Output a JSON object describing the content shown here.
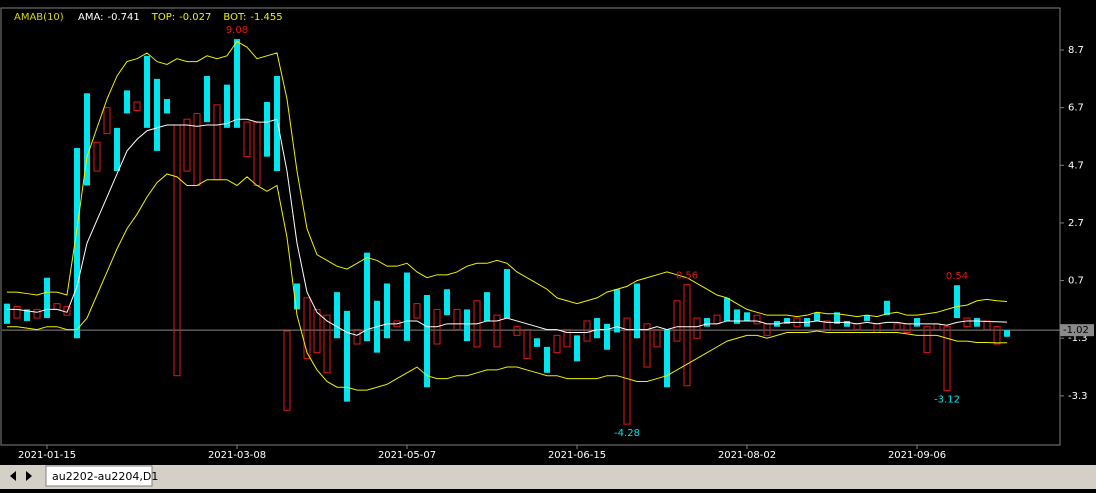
{
  "chart_data": {
    "type": "candlestick",
    "title": "AMAB(10)",
    "categories": [
      null,
      null,
      null,
      null,
      "2021-01-15",
      null,
      null,
      null,
      null,
      null,
      null,
      null,
      null,
      null,
      null,
      null,
      null,
      null,
      null,
      null,
      null,
      null,
      null,
      "2021-03-08",
      null,
      null,
      null,
      null,
      null,
      null,
      null,
      null,
      null,
      null,
      null,
      null,
      null,
      null,
      null,
      null,
      "2021-05-07",
      null,
      null,
      null,
      null,
      null,
      null,
      null,
      null,
      null,
      null,
      null,
      null,
      null,
      null,
      null,
      null,
      "2021-06-15",
      null,
      null,
      null,
      null,
      null,
      null,
      null,
      null,
      null,
      null,
      null,
      null,
      null,
      null,
      null,
      null,
      "2021-08-02",
      null,
      null,
      null,
      null,
      null,
      null,
      null,
      null,
      null,
      null,
      null,
      null,
      null,
      null,
      null,
      null,
      "2021-09-06",
      null,
      null,
      null,
      null,
      null,
      null,
      null,
      null,
      null
    ],
    "candles": {
      "up_color": "#00e5ee",
      "down_color": "#e01818",
      "open": [
        -0.8,
        -0.2,
        -0.7,
        -0.3,
        -0.6,
        -0.1,
        -0.2,
        -1.3,
        4.0,
        5.5,
        6.7,
        4.5,
        6.5,
        6.9,
        6.0,
        5.2,
        6.5,
        6.1,
        6.3,
        6.5,
        6.2,
        6.8,
        6.0,
        6.0,
        6.2,
        6.2,
        5.0,
        4.5,
        -1.05,
        -0.3,
        0.1,
        -0.3,
        -0.5,
        -1.3,
        -3.5,
        -1.0,
        -1.4,
        -1.8,
        -1.3,
        -0.7,
        -1.39,
        -0.1,
        -3.0,
        -0.3,
        -0.5,
        -0.3,
        -1.4,
        0.0,
        -0.7,
        -0.5,
        -0.6,
        -0.9,
        -1.0,
        -1.6,
        -2.5,
        -1.2,
        -1.0,
        -2.1,
        -0.7,
        -1.3,
        -1.7,
        -1.1,
        -0.6,
        -1.3,
        -0.8,
        -1.0,
        -3.0,
        0.0,
        0.56,
        -0.6,
        -0.9,
        -0.5,
        -0.7,
        -0.8,
        -0.7,
        -0.5,
        -0.8,
        -0.9,
        -0.8,
        -0.6,
        -0.9,
        -0.7,
        -0.7,
        -0.8,
        -0.9,
        -0.8,
        -0.7,
        -0.8,
        -0.5,
        -0.8,
        -0.8,
        -0.9,
        -0.9,
        -0.8,
        -0.9,
        -0.6,
        -0.6,
        -0.9,
        -0.7,
        -0.9,
        -1.25
      ],
      "close": [
        -0.1,
        -0.6,
        -0.3,
        -0.6,
        0.8,
        -0.3,
        -0.5,
        5.3,
        7.2,
        4.5,
        5.8,
        6.0,
        7.3,
        6.6,
        8.5,
        7.7,
        7.0,
        -2.6,
        4.5,
        4.0,
        7.8,
        4.2,
        7.5,
        9.08,
        5.0,
        4.0,
        6.9,
        7.8,
        -3.8,
        0.6,
        -2.0,
        -1.8,
        -2.5,
        0.3,
        -0.35,
        -1.5,
        1.67,
        0.0,
        0.6,
        -0.9,
        0.98,
        -0.6,
        0.2,
        -1.5,
        0.4,
        -1.0,
        -0.3,
        -1.6,
        0.3,
        -1.6,
        1.1,
        -1.2,
        -2.0,
        -1.3,
        -1.6,
        -1.8,
        -1.6,
        -1.2,
        -1.4,
        -0.6,
        -0.8,
        0.4,
        -4.28,
        0.6,
        -2.3,
        -1.6,
        -1.0,
        -1.4,
        -2.95,
        -1.3,
        -0.6,
        -0.8,
        0.1,
        -0.3,
        -0.4,
        -0.8,
        -1.2,
        -0.7,
        -0.6,
        -0.9,
        -0.6,
        -0.4,
        -1.0,
        -0.4,
        -0.7,
        -1.0,
        -0.5,
        -1.1,
        0.0,
        -1.0,
        -1.1,
        -0.6,
        -1.8,
        -1.0,
        -3.12,
        0.54,
        -0.9,
        -0.6,
        -1.0,
        -1.5,
        -1.02
      ]
    },
    "series": [
      {
        "name": "AMA:",
        "color": "#ffffff",
        "last": -0.741,
        "values": [
          -0.3,
          -0.3,
          -0.35,
          -0.4,
          -0.3,
          -0.3,
          -0.4,
          0.5,
          2.0,
          2.8,
          3.6,
          4.4,
          5.2,
          5.6,
          5.9,
          6.0,
          6.1,
          6.1,
          6.1,
          6.05,
          6.1,
          6.1,
          6.15,
          6.3,
          6.3,
          6.2,
          6.2,
          6.3,
          4.5,
          2.0,
          0.3,
          -0.4,
          -0.7,
          -0.9,
          -1.1,
          -1.2,
          -1.0,
          -0.9,
          -0.8,
          -0.8,
          -0.7,
          -0.7,
          -0.9,
          -0.9,
          -0.8,
          -0.8,
          -0.8,
          -0.8,
          -0.7,
          -0.7,
          -0.6,
          -0.7,
          -0.8,
          -0.9,
          -1.0,
          -1.0,
          -1.1,
          -1.1,
          -1.1,
          -1.0,
          -1.0,
          -0.9,
          -1.0,
          -1.0,
          -1.0,
          -0.9,
          -1.0,
          -0.9,
          -0.9,
          -0.9,
          -0.8,
          -0.8,
          -0.7,
          -0.7,
          -0.7,
          -0.7,
          -0.8,
          -0.8,
          -0.75,
          -0.75,
          -0.75,
          -0.7,
          -0.75,
          -0.75,
          -0.75,
          -0.8,
          -0.75,
          -0.8,
          -0.75,
          -0.75,
          -0.8,
          -0.8,
          -0.8,
          -0.8,
          -0.85,
          -0.75,
          -0.7,
          -0.7,
          -0.72,
          -0.73,
          -0.741
        ]
      },
      {
        "name": "TOP:",
        "color": "#f0f000",
        "last": -0.027,
        "values": [
          0.3,
          0.3,
          0.25,
          0.2,
          0.3,
          0.3,
          0.2,
          2.5,
          5.0,
          6.0,
          7.0,
          7.8,
          8.3,
          8.4,
          8.6,
          8.3,
          8.2,
          8.4,
          8.3,
          8.3,
          8.5,
          8.4,
          8.5,
          9.0,
          8.8,
          8.4,
          8.5,
          8.6,
          7.0,
          4.5,
          2.5,
          1.6,
          1.4,
          1.2,
          1.1,
          1.3,
          1.5,
          1.4,
          1.2,
          1.2,
          1.3,
          1.0,
          0.8,
          0.9,
          0.9,
          1.0,
          1.2,
          1.3,
          1.3,
          1.4,
          1.3,
          1.0,
          0.8,
          0.6,
          0.4,
          0.1,
          0.0,
          -0.1,
          0.0,
          0.1,
          0.3,
          0.4,
          0.5,
          0.7,
          0.8,
          0.9,
          1.0,
          0.9,
          0.8,
          0.6,
          0.4,
          0.2,
          0.1,
          -0.1,
          -0.3,
          -0.4,
          -0.5,
          -0.5,
          -0.5,
          -0.55,
          -0.5,
          -0.4,
          -0.45,
          -0.45,
          -0.5,
          -0.55,
          -0.5,
          -0.55,
          -0.45,
          -0.4,
          -0.5,
          -0.5,
          -0.45,
          -0.4,
          -0.3,
          -0.2,
          -0.15,
          0.0,
          0.05,
          0.0,
          -0.027
        ]
      },
      {
        "name": "BOT:",
        "color": "#f0f000",
        "last": -1.455,
        "values": [
          -0.9,
          -0.9,
          -0.95,
          -1.0,
          -0.9,
          -0.9,
          -1.0,
          -1.0,
          -0.6,
          0.2,
          1.0,
          1.8,
          2.5,
          3.0,
          3.6,
          4.1,
          4.4,
          4.3,
          4.0,
          4.0,
          4.2,
          4.2,
          4.2,
          4.0,
          4.3,
          4.0,
          3.8,
          4.0,
          2.2,
          -0.5,
          -1.8,
          -2.4,
          -2.8,
          -3.0,
          -3.0,
          -3.1,
          -3.1,
          -3.0,
          -2.9,
          -2.7,
          -2.5,
          -2.3,
          -2.6,
          -2.7,
          -2.7,
          -2.6,
          -2.6,
          -2.5,
          -2.4,
          -2.4,
          -2.3,
          -2.3,
          -2.4,
          -2.5,
          -2.6,
          -2.6,
          -2.7,
          -2.7,
          -2.7,
          -2.7,
          -2.6,
          -2.6,
          -2.7,
          -2.8,
          -2.8,
          -2.7,
          -2.6,
          -2.4,
          -2.2,
          -2.0,
          -1.8,
          -1.6,
          -1.4,
          -1.3,
          -1.2,
          -1.2,
          -1.3,
          -1.2,
          -1.1,
          -1.1,
          -1.1,
          -1.05,
          -1.1,
          -1.1,
          -1.1,
          -1.1,
          -1.1,
          -1.1,
          -1.1,
          -1.1,
          -1.15,
          -1.2,
          -1.2,
          -1.2,
          -1.3,
          -1.4,
          -1.4,
          -1.45,
          -1.45,
          -1.46,
          -1.455
        ]
      }
    ],
    "annotations": [
      {
        "value": 9.08,
        "at": 23,
        "side": "above",
        "color": "#e01818"
      },
      {
        "value": 0.56,
        "at": 68,
        "side": "above",
        "color": "#e01818"
      },
      {
        "value": 0.54,
        "at": 95,
        "side": "above",
        "color": "#e01818"
      },
      {
        "value": -4.28,
        "at": 62,
        "side": "below",
        "color": "#00e5ee"
      },
      {
        "value": -3.12,
        "at": 94,
        "side": "below",
        "color": "#00e5ee"
      }
    ],
    "current": -1.02,
    "ylim": [
      -4.97,
      10.02
    ],
    "yticks": [
      8.7,
      6.7,
      4.7,
      2.7,
      0.7,
      -1.3,
      -3.3
    ]
  },
  "tab": {
    "label": "au2202-au2204,D1"
  }
}
